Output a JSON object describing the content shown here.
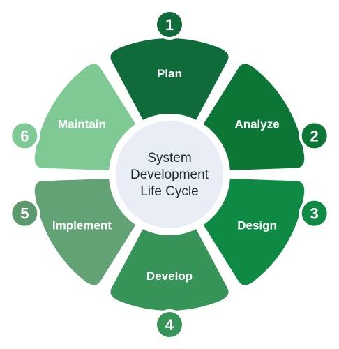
{
  "center": {
    "lines": [
      "System",
      "Development",
      "Life Cycle"
    ]
  },
  "phases": [
    {
      "number": "1",
      "label": "Plan",
      "color": "#0f6b3a",
      "badge_color": "#0f6b3a"
    },
    {
      "number": "2",
      "label": "Analyze",
      "color": "#0b7636",
      "badge_color": "#0b7636"
    },
    {
      "number": "3",
      "label": "Design",
      "color": "#0e8a44",
      "badge_color": "#0e8a44"
    },
    {
      "number": "4",
      "label": "Develop",
      "color": "#379458",
      "badge_color": "#379458"
    },
    {
      "number": "5",
      "label": "Implement",
      "color": "#63a275",
      "badge_color": "#5c9a6e"
    },
    {
      "number": "6",
      "label": "Maintain",
      "color": "#7ec994",
      "badge_color": "#7ec994"
    }
  ],
  "colors": {
    "center_fill": "#e9edf5",
    "ring_stroke": "#ffffff",
    "text_on_petal": "#ffffff",
    "center_text": "#1f2a33"
  }
}
